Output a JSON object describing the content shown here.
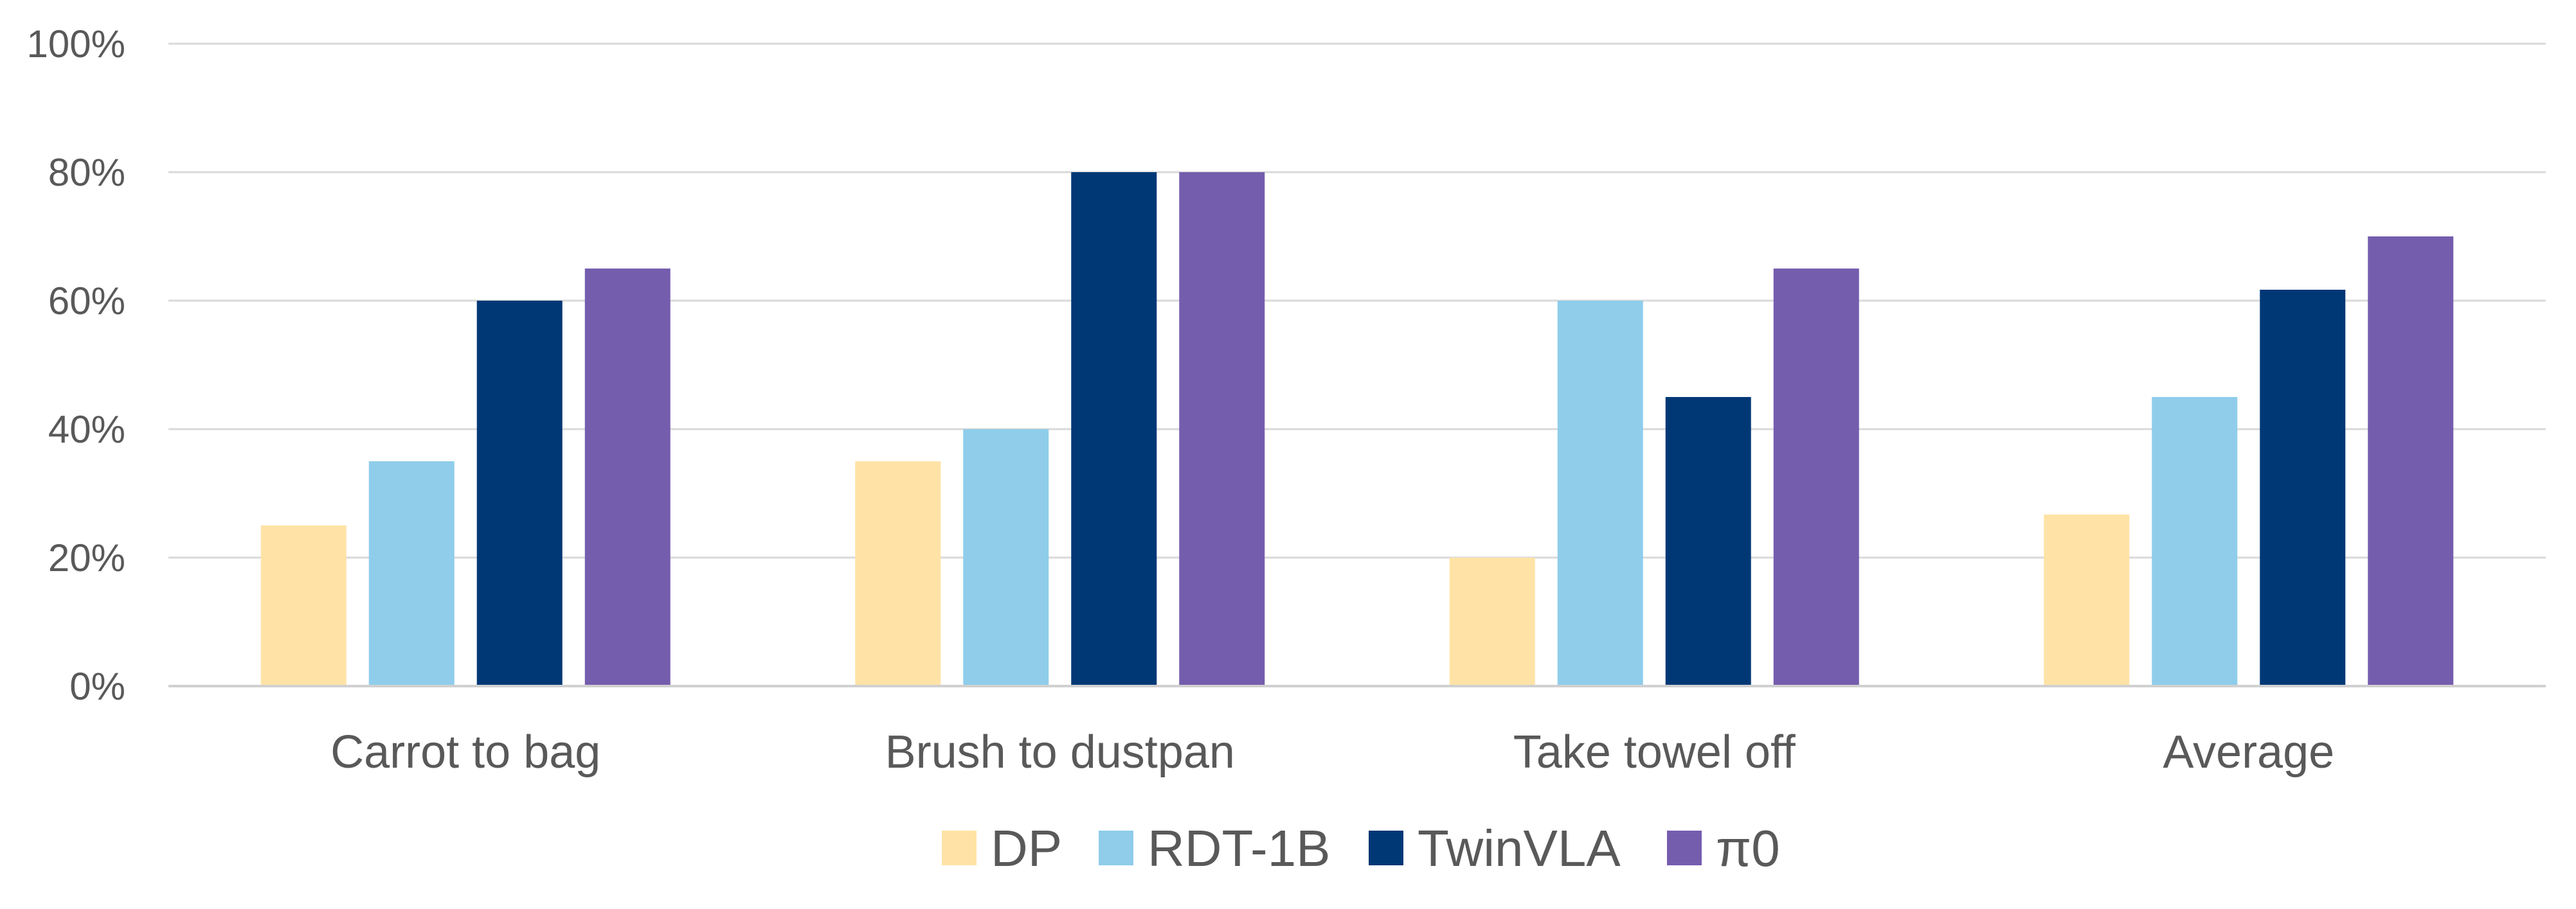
{
  "chart_data": {
    "type": "bar",
    "title": "",
    "xlabel": "",
    "ylabel": "",
    "categories": [
      "Carrot to bag",
      "Brush to dustpan",
      "Take towel off",
      "Average"
    ],
    "series": [
      {
        "name": "DP",
        "color": "#FFE3A6",
        "values": [
          25,
          35,
          20,
          26.7
        ]
      },
      {
        "name": "RDT-1B",
        "color": "#8FCDEB",
        "values": [
          35,
          40,
          60,
          45
        ]
      },
      {
        "name": "TwinVLA",
        "color": "#003876",
        "values": [
          60,
          80,
          45,
          61.7
        ]
      },
      {
        "name": "π0",
        "color": "#755DAE",
        "values": [
          65,
          80,
          65,
          70
        ]
      }
    ],
    "ylim": [
      0,
      100
    ],
    "yticks": [
      0,
      20,
      40,
      60,
      80,
      100
    ],
    "ytick_labels": [
      "0%",
      "20%",
      "40%",
      "60%",
      "80%",
      "100%"
    ],
    "grid": "horizontal",
    "legend_position": "bottom"
  }
}
